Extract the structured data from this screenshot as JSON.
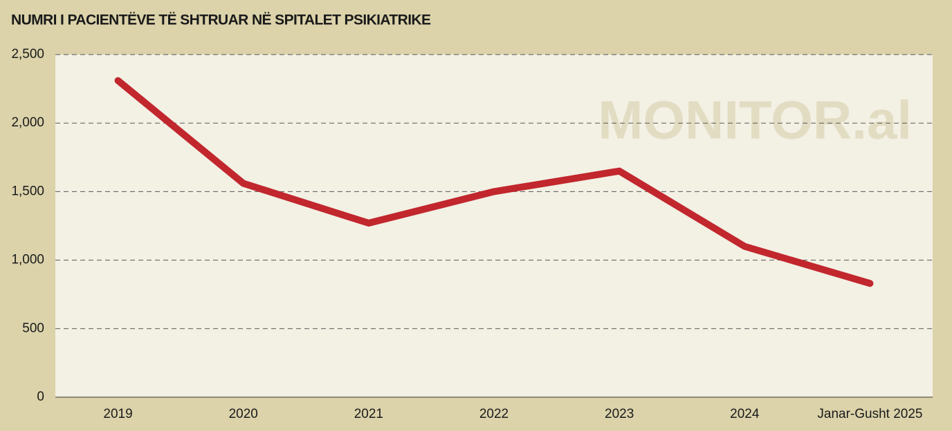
{
  "chart_data": {
    "type": "line",
    "title": "NUMRI I PACIENTËVE TË SHTRUAR NË SPITALET PSIKIATRIKE",
    "watermark": "MONITOR.al",
    "categories": [
      "2019",
      "2020",
      "2021",
      "2022",
      "2023",
      "2024",
      "Janar-Gusht 2025"
    ],
    "values": [
      2310,
      1560,
      1270,
      1500,
      1650,
      1100,
      830
    ],
    "color": "#c1272d",
    "ylim": [
      0,
      2500
    ],
    "yticks": [
      0,
      500,
      {
        "value": 1000,
        "label": "1,000"
      },
      {
        "value": 1500,
        "label": "1,500"
      },
      {
        "value": 2000,
        "label": "2,000"
      },
      {
        "value": 2500,
        "label": "2,500"
      }
    ],
    "grid": true
  }
}
